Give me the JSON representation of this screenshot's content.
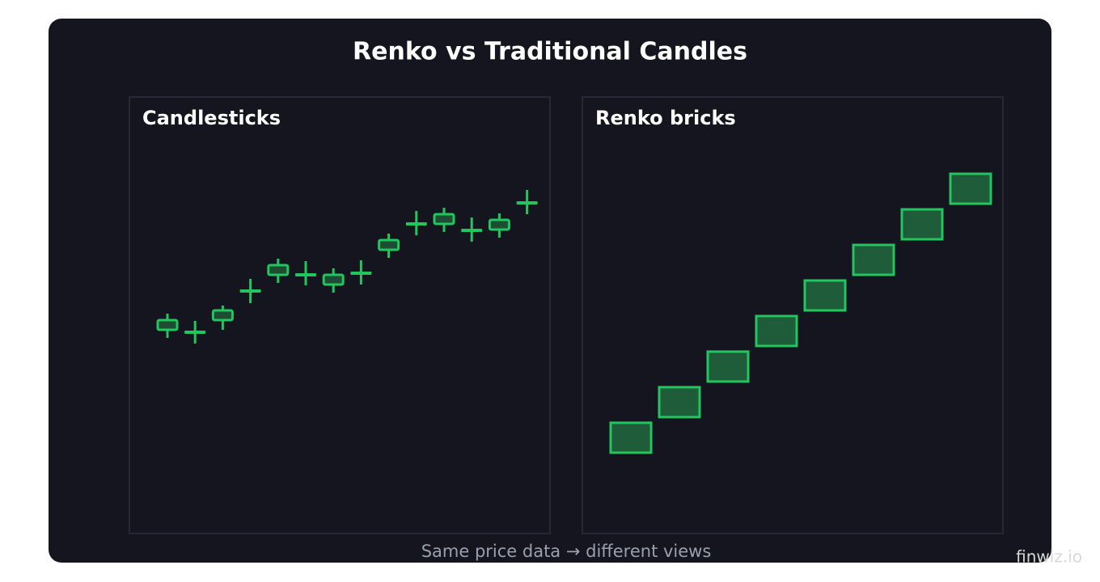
{
  "title": "Renko vs Traditional Candles",
  "caption": "Same price data → different views",
  "watermark": "finwiz.io",
  "chart_data": [
    {
      "type": "candlestick",
      "title": "Candlesticks",
      "color": "#22c55e",
      "body_fill": "#1e4d33",
      "ylim": [
        0,
        108
      ],
      "open": [
        50.4,
        49.8,
        52.8,
        60,
        64,
        64,
        61.6,
        64.4,
        70.2,
        76.6,
        76.6,
        75,
        75.2,
        81.8
      ],
      "high": [
        54.4,
        52.6,
        56.4,
        63,
        68,
        67.4,
        65.6,
        67.6,
        74.2,
        79.8,
        80.6,
        78.2,
        79.2,
        85
      ],
      "low": [
        48.4,
        47,
        50.4,
        57,
        62,
        61.4,
        59.6,
        61.6,
        68.2,
        73.8,
        74.6,
        72.2,
        73.2,
        79
      ],
      "close": [
        52.8,
        49.8,
        55.2,
        60,
        66.4,
        64,
        64,
        64.4,
        72.6,
        76.6,
        79,
        75,
        77.6,
        81.8
      ]
    },
    {
      "type": "renko",
      "title": "Renko bricks",
      "color": "#22c55e",
      "body_fill": "#1e5c3a",
      "ylim": [
        0,
        54
      ],
      "open": [
        10,
        14.4,
        18.8,
        23.2,
        27.6,
        32,
        36.4,
        40.8
      ],
      "close": [
        13.7,
        18.1,
        22.5,
        26.9,
        31.3,
        35.7,
        40.1,
        44.5
      ]
    }
  ]
}
